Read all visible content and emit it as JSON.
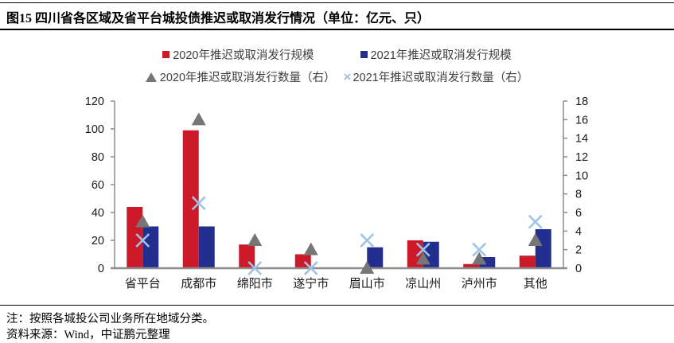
{
  "header": {
    "title": "图15 四川省各区域及省平台城投债推迟或取消发行情况（单位：亿元、只）"
  },
  "legend": [
    {
      "label": "2020年推迟或取消发行规模",
      "marker": "square",
      "color": "#CD1A2B"
    },
    {
      "label": "2021年推迟或取消发行规模",
      "marker": "square",
      "color": "#232F8E"
    },
    {
      "label": "2020年推迟或取消发行数量（右）",
      "marker": "triangle",
      "color": "#767676"
    },
    {
      "label": "2021年推迟或取消发行数量（右）",
      "marker": "x",
      "color": "#9DC3E6"
    }
  ],
  "chart_data": {
    "type": "bar",
    "title": "四川省各区域及省平台城投债推迟或取消发行情况",
    "units": "亿元、只",
    "categories": [
      "省平台",
      "成都市",
      "绵阳市",
      "遂宁市",
      "眉山市",
      "凉山州",
      "泸州市",
      "其他"
    ],
    "series": [
      {
        "name": "2020年推迟或取消发行规模",
        "type": "bar",
        "axis": "left",
        "marker": "square",
        "color": "#CD1A2B",
        "values": [
          44,
          99,
          17,
          10,
          0,
          20,
          3,
          9
        ]
      },
      {
        "name": "2021年推迟或取消发行规模",
        "type": "bar",
        "axis": "left",
        "marker": "square",
        "color": "#232F8E",
        "values": [
          30,
          30,
          0,
          0,
          15,
          19,
          8,
          28
        ]
      },
      {
        "name": "2020年推迟或取消发行数量（右）",
        "type": "scatter",
        "axis": "right",
        "marker": "triangle",
        "color": "#767676",
        "values": [
          5,
          16,
          3,
          2,
          0,
          1,
          1,
          3
        ]
      },
      {
        "name": "2021年推迟或取消发行数量（右）",
        "type": "scatter",
        "axis": "right",
        "marker": "x",
        "color": "#9DC3E6",
        "values": [
          3,
          7,
          0,
          0,
          3,
          2,
          2,
          5
        ]
      }
    ],
    "left_axis": {
      "min": 0,
      "max": 120,
      "step": 20,
      "ticks": [
        0,
        20,
        40,
        60,
        80,
        100,
        120
      ]
    },
    "right_axis": {
      "min": 0,
      "max": 18,
      "step": 2,
      "ticks": [
        0,
        2,
        4,
        6,
        8,
        10,
        12,
        14,
        16,
        18
      ]
    },
    "grid": false,
    "legend_position": "top",
    "axis_color": "#8C8C8C"
  },
  "footer": {
    "note": "注：按照各城投公司业务所在地域分类。",
    "source": "资料来源：Wind，中证鹏元整理"
  }
}
